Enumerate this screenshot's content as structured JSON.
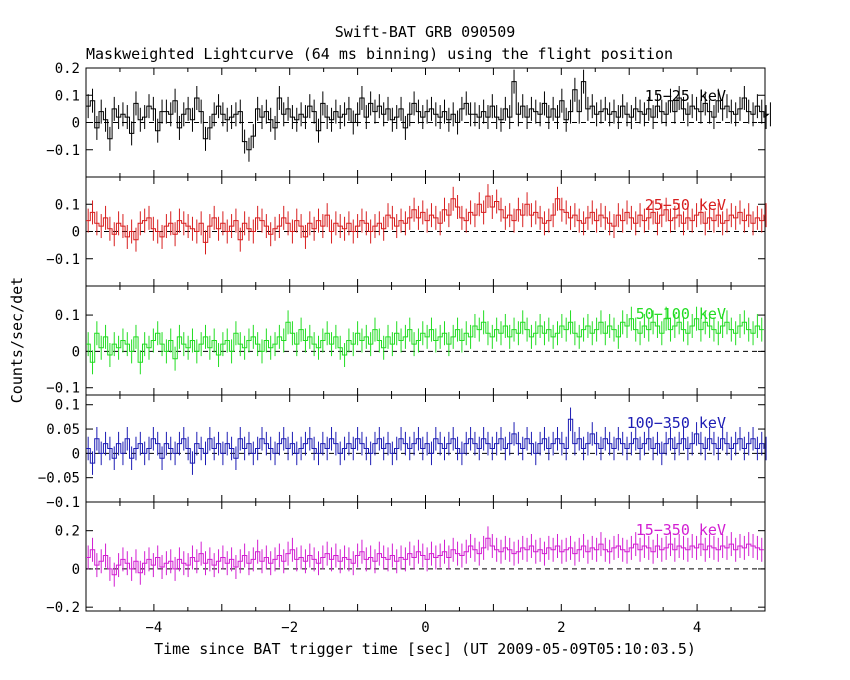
{
  "title": "Swift-BAT GRB 090509",
  "subtitle": "Maskweighted Lightcurve (64 ms binning) using the flight position",
  "xlabel": "Time since BAT trigger time [sec] (UT 2009-05-09T05:10:03.5)",
  "ylabel": "Counts/sec/det",
  "x_ticks": [
    "−4",
    "−2",
    "0",
    "2",
    "4"
  ],
  "chart_data": {
    "type": "line",
    "xlim": [
      -5,
      5
    ],
    "bin_width": 0.064,
    "panels": [
      {
        "name": "15−25 keV",
        "color": "#000000",
        "ylim": [
          -0.2,
          0.2
        ],
        "yticks": [
          -0.1,
          0,
          0.1,
          0.2
        ],
        "ytick_labels": [
          "−0.1",
          "0",
          "0.1",
          "0.2"
        ],
        "values": [
          0.06,
          0.08,
          -0.02,
          0.04,
          0.01,
          -0.06,
          0.05,
          0.02,
          0.03,
          0.02,
          -0.04,
          0.07,
          0.01,
          0.02,
          0.06,
          0.05,
          -0.03,
          0.04,
          0.04,
          0.03,
          0.08,
          -0.02,
          0.03,
          0.05,
          0.01,
          0.09,
          0.04,
          -0.06,
          -0.02,
          0.03,
          0.06,
          0.03,
          0.01,
          0.02,
          0.03,
          0.04,
          -0.07,
          -0.1,
          -0.05,
          0.05,
          0.02,
          0.04,
          0.01,
          -0.02,
          0.09,
          0.03,
          0.05,
          0.02,
          0.01,
          0.03,
          0.02,
          0.06,
          0.04,
          -0.03,
          0.07,
          0.02,
          0.01,
          0.04,
          0.02,
          0.03,
          0.05,
          0.0,
          0.03,
          0.09,
          0.02,
          0.07,
          0.04,
          0.06,
          0.03,
          0.05,
          0.01,
          0.02,
          0.05,
          -0.02,
          0.03,
          0.07,
          0.04,
          0.02,
          0.04,
          0.05,
          0.03,
          0.02,
          0.04,
          0.01,
          0.03,
          0.0,
          0.05,
          0.07,
          0.03,
          0.03,
          0.02,
          0.04,
          0.02,
          0.06,
          0.02,
          0.01,
          0.05,
          0.02,
          0.15,
          0.03,
          0.06,
          0.02,
          0.05,
          0.04,
          0.03,
          0.07,
          0.02,
          0.05,
          0.02,
          0.08,
          0.01,
          0.04,
          0.12,
          0.04,
          0.15,
          0.05,
          0.06,
          0.03,
          0.04,
          0.05,
          0.03,
          0.04,
          0.02,
          0.06,
          0.03,
          0.02,
          0.05,
          0.04,
          0.03,
          0.05,
          0.02,
          0.06,
          0.04,
          0.03,
          0.08,
          0.04,
          0.09,
          0.05,
          0.03,
          0.06,
          0.05,
          0.04,
          0.07,
          0.04,
          0.02,
          0.08,
          0.05,
          0.06,
          0.04,
          0.03,
          0.05,
          0.09,
          0.04,
          0.03,
          0.06,
          0.04,
          0.02,
          0.03
        ]
      },
      {
        "name": "25−50 keV",
        "color": "#d81e1e",
        "ylim": [
          -0.2,
          0.2
        ],
        "yticks": [
          -0.1,
          0,
          0.1
        ],
        "ytick_labels": [
          "−0.1",
          "0",
          "0.1"
        ],
        "values": [
          0.04,
          0.07,
          0.03,
          0.02,
          0.05,
          0.01,
          -0.01,
          0.03,
          0.02,
          -0.02,
          0.0,
          -0.03,
          0.03,
          0.04,
          0.05,
          0.01,
          0.0,
          -0.02,
          0.02,
          0.03,
          -0.01,
          0.04,
          0.03,
          0.02,
          0.01,
          0.0,
          0.03,
          -0.04,
          0.02,
          0.05,
          0.01,
          0.03,
          0.0,
          0.02,
          0.04,
          -0.03,
          0.03,
          0.01,
          0.0,
          0.05,
          0.04,
          0.02,
          -0.01,
          0.01,
          0.02,
          0.05,
          0.03,
          0.0,
          0.04,
          0.02,
          -0.02,
          0.03,
          0.01,
          0.04,
          0.02,
          0.06,
          0.0,
          0.03,
          0.02,
          0.01,
          0.03,
          0.0,
          0.02,
          0.04,
          0.03,
          0.0,
          0.02,
          0.03,
          0.01,
          0.06,
          0.05,
          0.02,
          0.04,
          0.03,
          0.05,
          0.08,
          0.05,
          0.07,
          0.04,
          0.06,
          0.05,
          0.03,
          0.08,
          0.06,
          0.12,
          0.09,
          0.05,
          0.04,
          0.07,
          0.06,
          0.1,
          0.07,
          0.13,
          0.09,
          0.11,
          0.08,
          0.05,
          0.06,
          0.04,
          0.08,
          0.06,
          0.1,
          0.06,
          0.07,
          0.05,
          0.03,
          0.04,
          0.06,
          0.12,
          0.08,
          0.07,
          0.05,
          0.06,
          0.04,
          0.03,
          0.05,
          0.07,
          0.04,
          0.06,
          0.05,
          0.03,
          0.02,
          0.06,
          0.04,
          0.07,
          0.05,
          0.03,
          0.06,
          0.04,
          0.05,
          0.07,
          0.03,
          0.06,
          0.08,
          0.04,
          0.05,
          0.06,
          0.03,
          0.05,
          0.04,
          0.06,
          0.07,
          0.03,
          0.05,
          0.04,
          0.06,
          0.03,
          0.04,
          0.06,
          0.05,
          0.07,
          0.04,
          0.06,
          0.03,
          0.05,
          0.04,
          0.06
        ]
      },
      {
        "name": "50−100 keV",
        "color": "#22dd22",
        "ylim": [
          -0.12,
          0.18
        ],
        "yticks": [
          -0.1,
          0,
          0.1
        ],
        "ytick_labels": [
          "−0.1",
          "0",
          "0.1"
        ],
        "values": [
          0.02,
          -0.03,
          0.05,
          0.01,
          0.04,
          -0.01,
          0.02,
          0.01,
          0.03,
          0.02,
          0.0,
          0.04,
          -0.03,
          0.02,
          0.01,
          0.03,
          0.05,
          0.02,
          0.0,
          0.03,
          -0.02,
          0.04,
          0.02,
          0.01,
          0.03,
          0.0,
          0.02,
          0.04,
          0.01,
          0.03,
          -0.01,
          0.02,
          0.03,
          0.0,
          0.05,
          0.02,
          0.01,
          0.03,
          0.04,
          0.02,
          0.0,
          0.03,
          0.01,
          0.02,
          0.04,
          0.03,
          0.08,
          0.05,
          0.02,
          0.06,
          0.03,
          0.04,
          0.02,
          0.01,
          0.03,
          0.05,
          0.02,
          0.04,
          0.01,
          -0.01,
          0.03,
          0.02,
          0.05,
          0.03,
          0.04,
          0.02,
          0.06,
          0.03,
          0.01,
          0.04,
          0.02,
          0.05,
          0.03,
          0.04,
          0.06,
          0.02,
          0.03,
          0.05,
          0.04,
          0.06,
          0.03,
          0.04,
          0.05,
          0.02,
          0.04,
          0.06,
          0.03,
          0.05,
          0.04,
          0.07,
          0.06,
          0.08,
          0.05,
          0.04,
          0.06,
          0.05,
          0.07,
          0.04,
          0.06,
          0.05,
          0.08,
          0.06,
          0.04,
          0.05,
          0.07,
          0.05,
          0.06,
          0.04,
          0.05,
          0.07,
          0.06,
          0.08,
          0.05,
          0.04,
          0.06,
          0.07,
          0.05,
          0.06,
          0.08,
          0.05,
          0.07,
          0.06,
          0.04,
          0.08,
          0.07,
          0.09,
          0.06,
          0.05,
          0.07,
          0.06,
          0.08,
          0.07,
          0.05,
          0.09,
          0.06,
          0.07,
          0.08,
          0.06,
          0.05,
          0.07,
          0.09,
          0.06,
          0.08,
          0.07,
          0.06,
          0.05,
          0.07,
          0.08,
          0.06,
          0.05,
          0.07,
          0.08,
          0.06,
          0.05,
          0.07,
          0.06
        ]
      },
      {
        "name": "100−350 keV",
        "color": "#1c1cb4",
        "ylim": [
          -0.1,
          0.12
        ],
        "yticks": [
          -0.1,
          -0.05,
          0,
          0.05,
          0.1
        ],
        "ytick_labels": [
          "−0.1",
          "−0.05",
          "0",
          "0.05",
          "0.1"
        ],
        "values": [
          0.01,
          -0.02,
          0.03,
          0.0,
          0.02,
          0.01,
          -0.01,
          0.02,
          0.0,
          0.03,
          -0.01,
          0.01,
          0.02,
          0.0,
          0.01,
          0.03,
          0.02,
          -0.01,
          0.02,
          0.01,
          0.0,
          0.02,
          0.03,
          0.01,
          -0.02,
          0.02,
          0.01,
          0.0,
          0.03,
          0.01,
          0.02,
          0.0,
          0.02,
          0.01,
          -0.01,
          0.03,
          0.01,
          0.02,
          0.0,
          0.01,
          0.03,
          0.02,
          0.01,
          0.0,
          0.02,
          0.03,
          0.01,
          0.02,
          0.0,
          0.01,
          0.02,
          0.03,
          0.01,
          0.0,
          0.02,
          0.01,
          0.03,
          0.02,
          0.0,
          0.01,
          0.02,
          0.01,
          0.03,
          0.02,
          0.01,
          0.0,
          0.02,
          0.03,
          0.01,
          0.02,
          0.0,
          0.01,
          0.03,
          0.02,
          0.01,
          0.02,
          0.03,
          0.01,
          0.02,
          0.0,
          0.03,
          0.02,
          0.01,
          0.02,
          0.03,
          0.01,
          0.0,
          0.02,
          0.03,
          0.02,
          0.01,
          0.03,
          0.02,
          0.01,
          0.02,
          0.03,
          0.01,
          0.02,
          0.04,
          0.02,
          0.01,
          0.03,
          0.02,
          0.0,
          0.02,
          0.03,
          0.01,
          0.02,
          0.03,
          0.02,
          0.01,
          0.07,
          0.02,
          0.03,
          0.01,
          0.02,
          0.04,
          0.02,
          0.01,
          0.03,
          0.02,
          0.01,
          0.03,
          0.02,
          0.01,
          0.02,
          0.03,
          0.01,
          0.02,
          0.03,
          0.01,
          0.02,
          0.0,
          0.02,
          0.03,
          0.01,
          0.02,
          0.03,
          0.01,
          0.02,
          0.04,
          0.02,
          0.01,
          0.03,
          0.02,
          0.01,
          0.03,
          0.02,
          0.01,
          0.02,
          0.03,
          0.01,
          0.02,
          0.03,
          0.01,
          0.02,
          0.01
        ]
      },
      {
        "name": "15−350 keV",
        "color": "#d21ed2",
        "ylim": [
          -0.22,
          0.35
        ],
        "yticks": [
          -0.2,
          0,
          0.2
        ],
        "ytick_labels": [
          "−0.2",
          "0",
          "0.2"
        ],
        "values": [
          0.06,
          0.1,
          0.02,
          0.04,
          0.07,
          0.0,
          -0.03,
          0.02,
          0.05,
          0.03,
          0.0,
          0.04,
          -0.02,
          0.03,
          0.05,
          0.02,
          0.06,
          0.01,
          0.03,
          0.04,
          0.0,
          0.05,
          0.03,
          0.02,
          0.06,
          0.04,
          0.08,
          0.03,
          0.05,
          0.02,
          0.04,
          0.06,
          0.03,
          0.05,
          0.01,
          0.04,
          0.07,
          0.03,
          0.05,
          0.09,
          0.04,
          0.06,
          0.03,
          0.05,
          0.07,
          0.04,
          0.08,
          0.1,
          0.05,
          0.06,
          0.04,
          0.07,
          0.05,
          0.03,
          0.06,
          0.08,
          0.05,
          0.07,
          0.04,
          0.06,
          0.05,
          0.03,
          0.07,
          0.09,
          0.05,
          0.06,
          0.04,
          0.08,
          0.06,
          0.05,
          0.07,
          0.04,
          0.06,
          0.05,
          0.08,
          0.06,
          0.09,
          0.07,
          0.05,
          0.08,
          0.06,
          0.07,
          0.09,
          0.06,
          0.1,
          0.08,
          0.07,
          0.09,
          0.12,
          0.1,
          0.08,
          0.11,
          0.16,
          0.12,
          0.1,
          0.09,
          0.11,
          0.1,
          0.08,
          0.09,
          0.11,
          0.1,
          0.12,
          0.09,
          0.1,
          0.08,
          0.11,
          0.1,
          0.12,
          0.09,
          0.1,
          0.11,
          0.08,
          0.1,
          0.12,
          0.09,
          0.11,
          0.1,
          0.13,
          0.1,
          0.09,
          0.11,
          0.12,
          0.1,
          0.09,
          0.11,
          0.13,
          0.1,
          0.12,
          0.11,
          0.09,
          0.12,
          0.1,
          0.11,
          0.13,
          0.1,
          0.12,
          0.11,
          0.1,
          0.12,
          0.11,
          0.13,
          0.1,
          0.12,
          0.11,
          0.1,
          0.12,
          0.11,
          0.13,
          0.1,
          0.12,
          0.11,
          0.13,
          0.12,
          0.11,
          0.1
        ]
      }
    ]
  }
}
